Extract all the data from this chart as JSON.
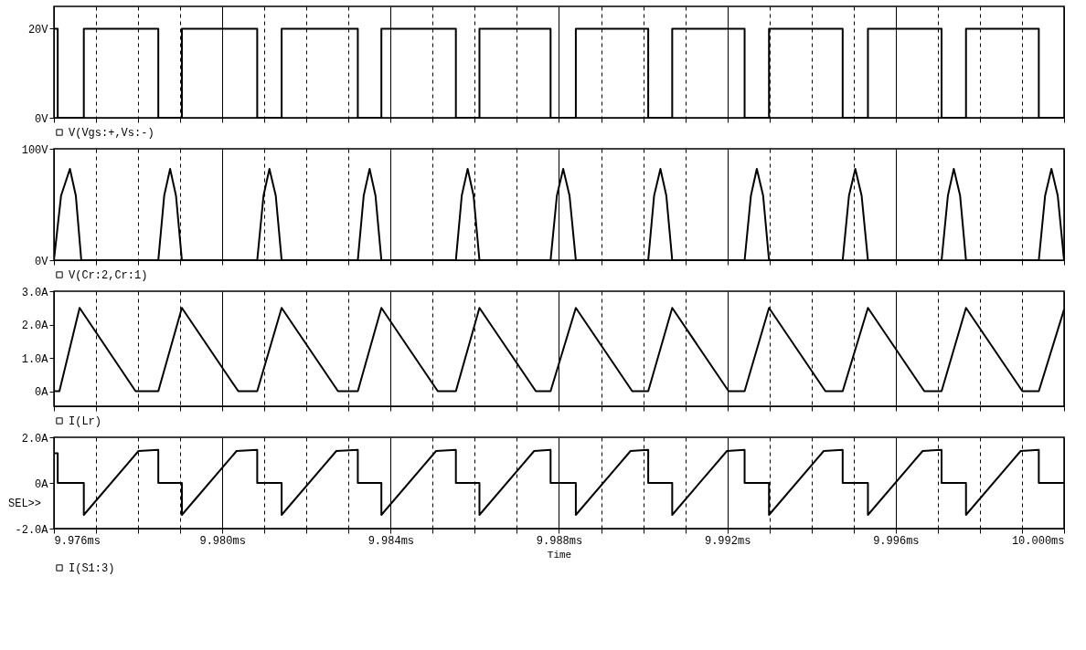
{
  "chart_data": [
    {
      "type": "line",
      "x": [
        9.976,
        9.97609,
        9.97609,
        9.97671,
        9.97671,
        9.97848,
        9.97848,
        9.97904,
        9.97904,
        9.98083,
        9.98083,
        9.98141,
        9.98141,
        9.98322,
        9.98322,
        9.98378,
        9.98378,
        9.98555,
        9.98555,
        9.98611,
        9.98611,
        9.9878,
        9.9878,
        9.9884,
        9.9884,
        9.99012,
        9.99012,
        9.99069,
        9.99069,
        9.99241,
        9.99241,
        9.99299,
        9.99299,
        9.99474,
        9.99474,
        9.99534,
        9.99534,
        9.99709,
        9.99709,
        9.99767,
        9.99767,
        9.9994,
        9.9994,
        10.0
      ],
      "series": [
        {
          "name": "V(Vgs:+,Vs:-)",
          "color": "#000000",
          "values": [
            20,
            20,
            0,
            0,
            20,
            20,
            0,
            0,
            20,
            20,
            0,
            0,
            20,
            20,
            0,
            0,
            20,
            20,
            0,
            0,
            20,
            20,
            0,
            0,
            20,
            20,
            0,
            0,
            20,
            20,
            0,
            0,
            20,
            20,
            0,
            0,
            20,
            20,
            0,
            0,
            20,
            20,
            0,
            0
          ]
        }
      ],
      "xlim": [
        9.976,
        10.0
      ],
      "xticks": [
        {
          "value": 9.976,
          "label": null
        },
        {
          "value": 9.977,
          "label": null
        },
        {
          "value": 9.978,
          "label": null
        },
        {
          "value": 9.979,
          "label": null
        },
        {
          "value": 9.98,
          "label": null
        },
        {
          "value": 9.981,
          "label": null
        },
        {
          "value": 9.982,
          "label": null
        },
        {
          "value": 9.983,
          "label": null
        },
        {
          "value": 9.984,
          "label": null
        },
        {
          "value": 9.985,
          "label": null
        },
        {
          "value": 9.986,
          "label": null
        },
        {
          "value": 9.987,
          "label": null
        },
        {
          "value": 9.988,
          "label": null
        },
        {
          "value": 9.989,
          "label": null
        },
        {
          "value": 9.99,
          "label": null
        },
        {
          "value": 9.991,
          "label": null
        },
        {
          "value": 9.992,
          "label": null
        },
        {
          "value": 9.993,
          "label": null
        },
        {
          "value": 9.994,
          "label": null
        },
        {
          "value": 9.995,
          "label": null
        },
        {
          "value": 9.996,
          "label": null
        },
        {
          "value": 9.997,
          "label": null
        },
        {
          "value": 9.998,
          "label": null
        },
        {
          "value": 9.999,
          "label": null
        },
        {
          "value": 10.0,
          "label": null
        }
      ],
      "ylim": [
        0,
        25
      ],
      "yticks": [
        {
          "value": 0,
          "label": "0V"
        },
        {
          "value": 20,
          "label": "20V"
        }
      ],
      "grid": "x",
      "legend": "bottom",
      "tick_labels": "y"
    },
    {
      "type": "line",
      "x": [
        9.976,
        9.97617,
        9.97638,
        9.97652,
        9.97665,
        9.97848,
        9.97862,
        9.97876,
        9.9789,
        9.97904,
        9.98083,
        9.98098,
        9.98112,
        9.98127,
        9.98141,
        9.98322,
        9.98336,
        9.9835,
        9.98364,
        9.98378,
        9.98555,
        9.98569,
        9.98583,
        9.98597,
        9.98611,
        9.9878,
        9.98795,
        9.9881,
        9.98825,
        9.9884,
        9.99012,
        9.99026,
        9.99041,
        9.99055,
        9.99069,
        9.99241,
        9.99256,
        9.9927,
        9.99285,
        9.99299,
        9.99474,
        9.99489,
        9.99504,
        9.99519,
        9.99534,
        9.99709,
        9.99724,
        9.99738,
        9.99753,
        9.99767,
        9.9994,
        9.99955,
        9.9997,
        9.99985,
        10.0
      ],
      "series": [
        {
          "name": "V(Cr:2,Cr:1)",
          "color": "#000000",
          "values": [
            0,
            58,
            82,
            58,
            0,
            0,
            58,
            82,
            58,
            0,
            0,
            58,
            82,
            58,
            0,
            0,
            58,
            82,
            58,
            0,
            0,
            58,
            82,
            58,
            0,
            0,
            58,
            82,
            58,
            0,
            0,
            58,
            82,
            58,
            0,
            0,
            58,
            82,
            58,
            0,
            0,
            58,
            82,
            58,
            0,
            0,
            58,
            82,
            58,
            0,
            0,
            58,
            82,
            58,
            0
          ]
        }
      ],
      "xlim": [
        9.976,
        10.0
      ],
      "xticks": [
        {
          "value": 9.976,
          "label": null
        },
        {
          "value": 9.977,
          "label": null
        },
        {
          "value": 9.978,
          "label": null
        },
        {
          "value": 9.979,
          "label": null
        },
        {
          "value": 9.98,
          "label": null
        },
        {
          "value": 9.981,
          "label": null
        },
        {
          "value": 9.982,
          "label": null
        },
        {
          "value": 9.983,
          "label": null
        },
        {
          "value": 9.984,
          "label": null
        },
        {
          "value": 9.985,
          "label": null
        },
        {
          "value": 9.986,
          "label": null
        },
        {
          "value": 9.987,
          "label": null
        },
        {
          "value": 9.988,
          "label": null
        },
        {
          "value": 9.989,
          "label": null
        },
        {
          "value": 9.99,
          "label": null
        },
        {
          "value": 9.991,
          "label": null
        },
        {
          "value": 9.992,
          "label": null
        },
        {
          "value": 9.993,
          "label": null
        },
        {
          "value": 9.994,
          "label": null
        },
        {
          "value": 9.995,
          "label": null
        },
        {
          "value": 9.996,
          "label": null
        },
        {
          "value": 9.997,
          "label": null
        },
        {
          "value": 9.998,
          "label": null
        },
        {
          "value": 9.999,
          "label": null
        },
        {
          "value": 10.0,
          "label": null
        }
      ],
      "ylim": [
        0,
        100
      ],
      "yticks": [
        {
          "value": 0,
          "label": "0V"
        },
        {
          "value": 100,
          "label": "100V"
        }
      ],
      "grid": "x",
      "legend": "bottom",
      "tick_labels": "y"
    },
    {
      "type": "line",
      "x": [
        9.976,
        9.97613,
        9.97661,
        9.97794,
        9.97848,
        9.97904,
        9.98038,
        9.98083,
        9.98141,
        9.98275,
        9.98322,
        9.98378,
        9.98512,
        9.98555,
        9.98611,
        9.98745,
        9.9878,
        9.9884,
        9.98974,
        9.99012,
        9.99069,
        9.99203,
        9.99241,
        9.99299,
        9.99433,
        9.99474,
        9.99534,
        9.99668,
        9.99709,
        9.99767,
        9.99901,
        9.9994,
        10.0
      ],
      "series": [
        {
          "name": "I(Lr)",
          "color": "#000000",
          "values": [
            0,
            0,
            2.5,
            0,
            0,
            2.5,
            0,
            0,
            2.5,
            0,
            0,
            2.5,
            0,
            0,
            2.5,
            0,
            0,
            2.5,
            0,
            0,
            2.5,
            0,
            0,
            2.5,
            0,
            0,
            2.5,
            0,
            0,
            2.5,
            0,
            0,
            2.45
          ]
        }
      ],
      "xlim": [
        9.976,
        10.0
      ],
      "xticks": [
        {
          "value": 9.976,
          "label": null
        },
        {
          "value": 9.977,
          "label": null
        },
        {
          "value": 9.978,
          "label": null
        },
        {
          "value": 9.979,
          "label": null
        },
        {
          "value": 9.98,
          "label": null
        },
        {
          "value": 9.981,
          "label": null
        },
        {
          "value": 9.982,
          "label": null
        },
        {
          "value": 9.983,
          "label": null
        },
        {
          "value": 9.984,
          "label": null
        },
        {
          "value": 9.985,
          "label": null
        },
        {
          "value": 9.986,
          "label": null
        },
        {
          "value": 9.987,
          "label": null
        },
        {
          "value": 9.988,
          "label": null
        },
        {
          "value": 9.989,
          "label": null
        },
        {
          "value": 9.99,
          "label": null
        },
        {
          "value": 9.991,
          "label": null
        },
        {
          "value": 9.992,
          "label": null
        },
        {
          "value": 9.993,
          "label": null
        },
        {
          "value": 9.994,
          "label": null
        },
        {
          "value": 9.995,
          "label": null
        },
        {
          "value": 9.996,
          "label": null
        },
        {
          "value": 9.997,
          "label": null
        },
        {
          "value": 9.998,
          "label": null
        },
        {
          "value": 9.999,
          "label": null
        },
        {
          "value": 10.0,
          "label": null
        }
      ],
      "ylim": [
        -0.45,
        3.0
      ],
      "yticks": [
        {
          "value": 0,
          "label": "0A"
        },
        {
          "value": 1,
          "label": "1.0A"
        },
        {
          "value": 2,
          "label": "2.0A"
        },
        {
          "value": 3,
          "label": "3.0A"
        }
      ],
      "grid": "x",
      "legend": "bottom",
      "tick_labels": "y"
    },
    {
      "type": "line",
      "x": [
        9.976,
        9.97609,
        9.97609,
        9.97671,
        9.97671,
        9.97801,
        9.97848,
        9.97848,
        9.97904,
        9.97904,
        9.98034,
        9.98083,
        9.98083,
        9.98141,
        9.98141,
        9.98271,
        9.98322,
        9.98322,
        9.98378,
        9.98378,
        9.98508,
        9.98555,
        9.98555,
        9.98611,
        9.98611,
        9.98741,
        9.9878,
        9.9878,
        9.9884,
        9.9884,
        9.9897,
        9.99012,
        9.99012,
        9.99069,
        9.99069,
        9.99199,
        9.99241,
        9.99241,
        9.99299,
        9.99299,
        9.99429,
        9.99474,
        9.99474,
        9.99534,
        9.99534,
        9.99664,
        9.99709,
        9.99709,
        9.99767,
        9.99767,
        9.99897,
        9.9994,
        9.9994,
        10.0
      ],
      "series": [
        {
          "name": "I(S1:3)",
          "color": "#000000",
          "values": [
            1.3,
            1.3,
            0,
            0,
            -1.4,
            1.4,
            1.45,
            0,
            0,
            -1.4,
            1.4,
            1.45,
            0,
            0,
            -1.4,
            1.4,
            1.45,
            0,
            0,
            -1.4,
            1.4,
            1.45,
            0,
            0,
            -1.4,
            1.4,
            1.45,
            0,
            0,
            -1.4,
            1.4,
            1.45,
            0,
            0,
            -1.4,
            1.4,
            1.45,
            0,
            0,
            -1.4,
            1.4,
            1.45,
            0,
            0,
            -1.4,
            1.4,
            1.45,
            0,
            0,
            -1.4,
            1.4,
            1.45,
            0,
            0
          ]
        }
      ],
      "xlim": [
        9.976,
        10.0
      ],
      "xticks": [
        {
          "value": 9.976,
          "label": "9.976ms"
        },
        {
          "value": 9.977,
          "label": null
        },
        {
          "value": 9.978,
          "label": null
        },
        {
          "value": 9.979,
          "label": null
        },
        {
          "value": 9.98,
          "label": "9.980ms"
        },
        {
          "value": 9.981,
          "label": null
        },
        {
          "value": 9.982,
          "label": null
        },
        {
          "value": 9.983,
          "label": null
        },
        {
          "value": 9.984,
          "label": "9.984ms"
        },
        {
          "value": 9.985,
          "label": null
        },
        {
          "value": 9.986,
          "label": null
        },
        {
          "value": 9.987,
          "label": null
        },
        {
          "value": 9.988,
          "label": "9.988ms"
        },
        {
          "value": 9.989,
          "label": null
        },
        {
          "value": 9.99,
          "label": null
        },
        {
          "value": 9.991,
          "label": null
        },
        {
          "value": 9.992,
          "label": "9.992ms"
        },
        {
          "value": 9.993,
          "label": null
        },
        {
          "value": 9.994,
          "label": null
        },
        {
          "value": 9.995,
          "label": null
        },
        {
          "value": 9.996,
          "label": "9.996ms"
        },
        {
          "value": 9.997,
          "label": null
        },
        {
          "value": 9.998,
          "label": null
        },
        {
          "value": 9.999,
          "label": null
        },
        {
          "value": 10.0,
          "label": "10.000ms"
        }
      ],
      "ylim": [
        -2.0,
        2.0
      ],
      "yticks": [
        {
          "value": -2,
          "label": "-2.0A"
        },
        {
          "value": 0,
          "label": "0A"
        },
        {
          "value": 2,
          "label": "2.0A"
        }
      ],
      "xlabel": "Time",
      "annotations": [
        "SEL>>"
      ],
      "grid": "x",
      "legend": "bottom"
    }
  ]
}
